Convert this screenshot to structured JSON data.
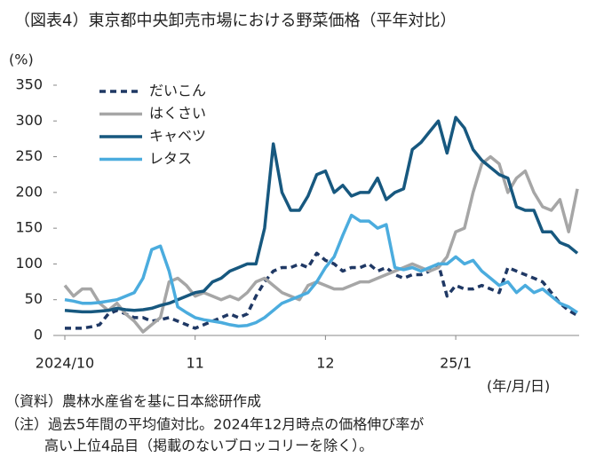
{
  "chart_data": {
    "type": "line",
    "title": "（図表4）東京都中央卸売市場における野菜価格（平年対比）",
    "y_label": "(%)",
    "x_label": "(年/月/日)",
    "notes": [
      "（資料）農林水産省を基に日本総研作成",
      "（注）過去5年間の平均値対比。2024年12月時点の価格伸び率が",
      "高い上位4品目（掲載のないブロッコリーを除く）。"
    ],
    "categories": [
      "2024/10",
      null,
      null,
      null,
      null,
      null,
      null,
      null,
      null,
      null,
      null,
      null,
      null,
      null,
      null,
      "11",
      null,
      null,
      null,
      null,
      null,
      null,
      null,
      null,
      null,
      null,
      null,
      null,
      null,
      null,
      "12",
      null,
      null,
      null,
      null,
      null,
      null,
      null,
      null,
      null,
      null,
      null,
      null,
      null,
      null,
      "25/1",
      null,
      null,
      null,
      null,
      null,
      null,
      null,
      null,
      null,
      null,
      null,
      null,
      null,
      null
    ],
    "ylim": [
      0,
      350
    ],
    "yticks": [
      0,
      50,
      100,
      150,
      200,
      250,
      300,
      350
    ],
    "grid": false,
    "legend": "top-left",
    "series": [
      {
        "name": "だいこん",
        "color": "#1f3864",
        "dash": true,
        "values": [
          10,
          10,
          10,
          12,
          15,
          30,
          35,
          30,
          25,
          25,
          20,
          22,
          25,
          20,
          15,
          10,
          15,
          20,
          25,
          30,
          25,
          30,
          55,
          75,
          90,
          95,
          95,
          100,
          95,
          115,
          105,
          100,
          90,
          95,
          95,
          100,
          90,
          95,
          85,
          80,
          85,
          85,
          90,
          100,
          55,
          70,
          65,
          65,
          70,
          65,
          60,
          95,
          90,
          85,
          80,
          75,
          60,
          45,
          35,
          28
        ]
      },
      {
        "name": "はくさい",
        "color": "#a6a6a6",
        "dash": false,
        "values": [
          70,
          55,
          65,
          65,
          45,
          35,
          45,
          30,
          20,
          5,
          15,
          25,
          75,
          80,
          70,
          55,
          60,
          55,
          50,
          55,
          50,
          60,
          75,
          80,
          70,
          60,
          55,
          50,
          70,
          75,
          70,
          65,
          65,
          70,
          75,
          75,
          80,
          85,
          90,
          95,
          100,
          95,
          90,
          95,
          110,
          145,
          150,
          200,
          240,
          250,
          240,
          200,
          220,
          230,
          200,
          180,
          175,
          190,
          145,
          205
        ]
      },
      {
        "name": "キャベツ",
        "color": "#17587f",
        "dash": false,
        "values": [
          35,
          34,
          33,
          33,
          34,
          35,
          38,
          36,
          35,
          36,
          38,
          42,
          45,
          50,
          55,
          60,
          62,
          75,
          80,
          90,
          95,
          100,
          100,
          150,
          268,
          200,
          175,
          175,
          195,
          225,
          230,
          200,
          210,
          195,
          200,
          200,
          220,
          190,
          200,
          205,
          260,
          270,
          285,
          300,
          255,
          305,
          290,
          260,
          245,
          235,
          225,
          220,
          180,
          175,
          175,
          145,
          145,
          130,
          125,
          115
        ]
      },
      {
        "name": "レタス",
        "color": "#4bacde",
        "dash": false,
        "values": [
          50,
          48,
          45,
          45,
          46,
          48,
          50,
          55,
          60,
          80,
          120,
          125,
          90,
          40,
          32,
          25,
          22,
          20,
          18,
          15,
          13,
          14,
          18,
          25,
          35,
          45,
          50,
          55,
          60,
          75,
          95,
          110,
          140,
          168,
          160,
          160,
          150,
          155,
          95,
          92,
          95,
          90,
          95,
          100,
          100,
          110,
          100,
          105,
          90,
          80,
          70,
          75,
          60,
          70,
          60,
          65,
          55,
          45,
          40,
          32
        ]
      }
    ]
  }
}
